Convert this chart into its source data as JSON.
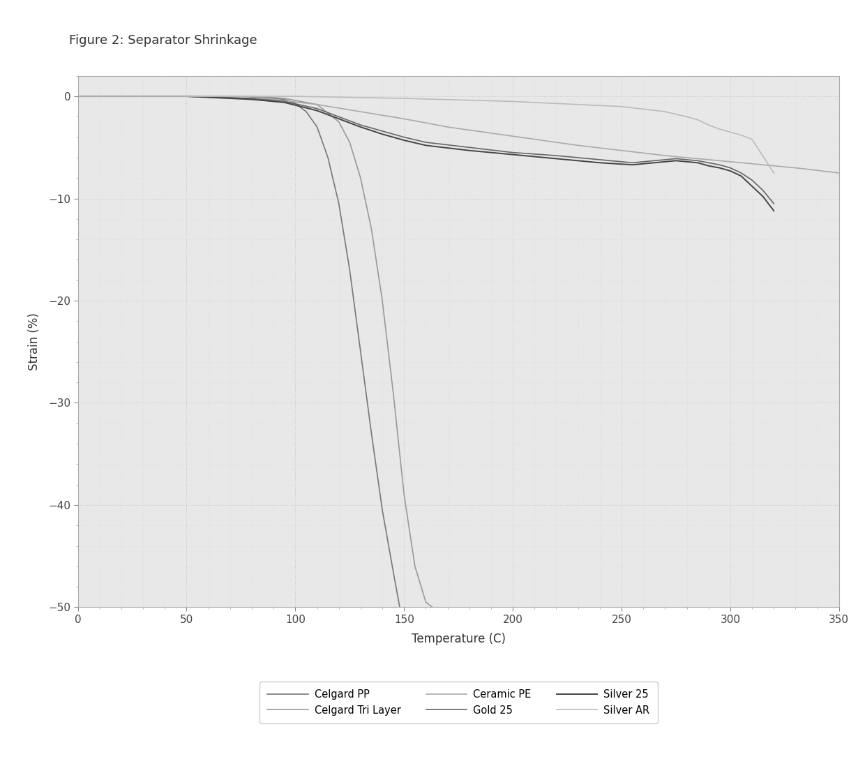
{
  "title": "Figure 2: Separator Shrinkage",
  "xlabel": "Temperature (C)",
  "ylabel": "Strain (%)",
  "xlim": [
    0,
    350
  ],
  "ylim": [
    -50,
    2
  ],
  "xticks": [
    0,
    50,
    100,
    150,
    200,
    250,
    300,
    350
  ],
  "yticks": [
    0,
    -10,
    -20,
    -30,
    -40,
    -50
  ],
  "plot_bg": "#e8e8e8",
  "fig_bg": "#ffffff",
  "celgard_pp": {
    "label": "Celgard PP",
    "x": [
      0,
      50,
      75,
      85,
      95,
      100,
      105,
      110,
      115,
      120,
      125,
      130,
      135,
      140,
      145,
      148
    ],
    "y": [
      0,
      0,
      0,
      -0.1,
      -0.3,
      -0.7,
      -1.5,
      -3.0,
      -6.0,
      -10.5,
      -17.0,
      -25.0,
      -33.0,
      -40.5,
      -46.5,
      -50.0
    ],
    "color": "#777777",
    "lw": 1.2,
    "ls": "-"
  },
  "celgard_tri": {
    "label": "Celgard Tri Layer",
    "x": [
      0,
      50,
      80,
      95,
      110,
      120,
      125,
      130,
      135,
      140,
      145,
      150,
      155,
      160,
      163
    ],
    "y": [
      0,
      0,
      0,
      -0.2,
      -0.8,
      -2.5,
      -4.5,
      -8.0,
      -13.0,
      -20.0,
      -29.0,
      -39.0,
      -46.0,
      -49.5,
      -50.0
    ],
    "color": "#999999",
    "lw": 1.2,
    "ls": "-"
  },
  "ceramic_pe": {
    "label": "Ceramic PE",
    "x": [
      0,
      50,
      90,
      110,
      130,
      150,
      170,
      190,
      210,
      230,
      250,
      270,
      290,
      310,
      330,
      350
    ],
    "y": [
      0,
      0,
      -0.3,
      -0.8,
      -1.5,
      -2.2,
      -3.0,
      -3.6,
      -4.2,
      -4.8,
      -5.3,
      -5.8,
      -6.2,
      -6.6,
      -7.0,
      -7.5
    ],
    "color": "#aaaaaa",
    "lw": 1.2,
    "ls": "-"
  },
  "gold25": {
    "label": "Gold 25",
    "x": [
      0,
      50,
      80,
      95,
      110,
      120,
      130,
      140,
      150,
      160,
      180,
      200,
      220,
      240,
      255,
      260,
      265,
      270,
      275,
      280,
      285,
      290,
      295,
      300,
      305,
      310,
      315,
      320
    ],
    "y": [
      0,
      0,
      -0.2,
      -0.5,
      -1.2,
      -2.0,
      -2.8,
      -3.4,
      -4.0,
      -4.5,
      -5.0,
      -5.5,
      -5.8,
      -6.2,
      -6.5,
      -6.4,
      -6.3,
      -6.2,
      -6.1,
      -6.2,
      -6.3,
      -6.5,
      -6.7,
      -7.0,
      -7.5,
      -8.2,
      -9.2,
      -10.5
    ],
    "color": "#666666",
    "lw": 1.2,
    "ls": "-"
  },
  "silver25": {
    "label": "Silver 25",
    "x": [
      0,
      50,
      80,
      95,
      110,
      120,
      130,
      140,
      150,
      160,
      180,
      200,
      220,
      240,
      255,
      260,
      265,
      270,
      275,
      280,
      285,
      290,
      295,
      300,
      305,
      310,
      315,
      320
    ],
    "y": [
      0,
      0,
      -0.3,
      -0.6,
      -1.4,
      -2.2,
      -3.0,
      -3.7,
      -4.3,
      -4.8,
      -5.3,
      -5.7,
      -6.1,
      -6.5,
      -6.7,
      -6.6,
      -6.5,
      -6.4,
      -6.3,
      -6.4,
      -6.5,
      -6.8,
      -7.0,
      -7.3,
      -7.8,
      -8.8,
      -9.8,
      -11.2
    ],
    "color": "#444444",
    "lw": 1.4,
    "ls": "-"
  },
  "silver_ar": {
    "label": "Silver AR",
    "x": [
      0,
      50,
      100,
      150,
      200,
      250,
      270,
      280,
      285,
      290,
      295,
      300,
      305,
      310,
      320
    ],
    "y": [
      0,
      0,
      0,
      -0.2,
      -0.5,
      -1.0,
      -1.5,
      -2.0,
      -2.3,
      -2.8,
      -3.2,
      -3.5,
      -3.8,
      -4.2,
      -7.5
    ],
    "color": "#bbbbbb",
    "lw": 1.2,
    "ls": "-"
  }
}
